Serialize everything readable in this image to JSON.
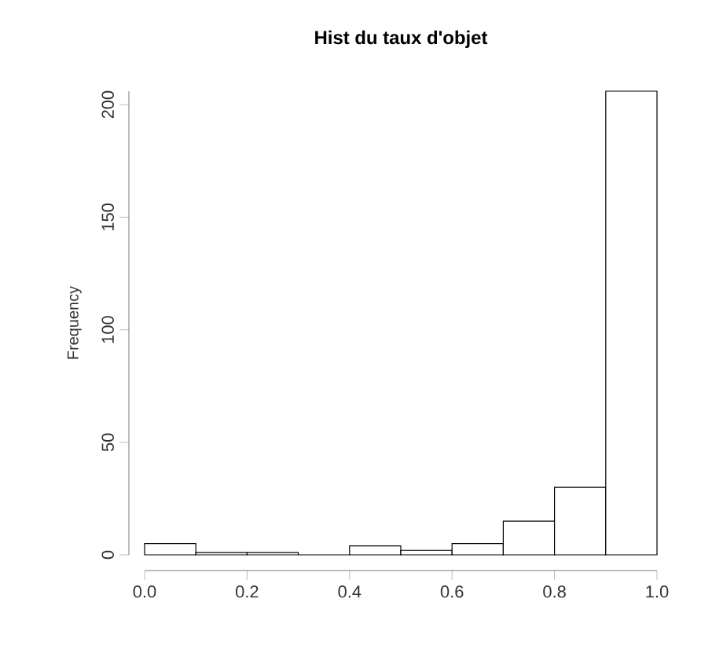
{
  "chart_data": {
    "type": "histogram",
    "title": "Hist du taux d'objet",
    "ylabel": "Frequency",
    "bins": [
      0.0,
      0.1,
      0.2,
      0.3,
      0.4,
      0.5,
      0.6,
      0.7,
      0.8,
      0.9,
      1.0
    ],
    "values": [
      5,
      1,
      1,
      0,
      4,
      2,
      5,
      15,
      30,
      206
    ],
    "color": "#ffffff",
    "xlim": [
      0.0,
      1.0
    ],
    "xticks": [
      {
        "value": 0.0,
        "label": "0.0"
      },
      {
        "value": 0.2,
        "label": "0.2"
      },
      {
        "value": 0.4,
        "label": "0.4"
      },
      {
        "value": 0.6,
        "label": "0.6"
      },
      {
        "value": 0.8,
        "label": "0.8"
      },
      {
        "value": 1.0,
        "label": "1.0"
      }
    ],
    "ylim": [
      0,
      206
    ],
    "yticks": [
      0,
      50,
      100,
      150,
      200
    ],
    "grid": false
  }
}
